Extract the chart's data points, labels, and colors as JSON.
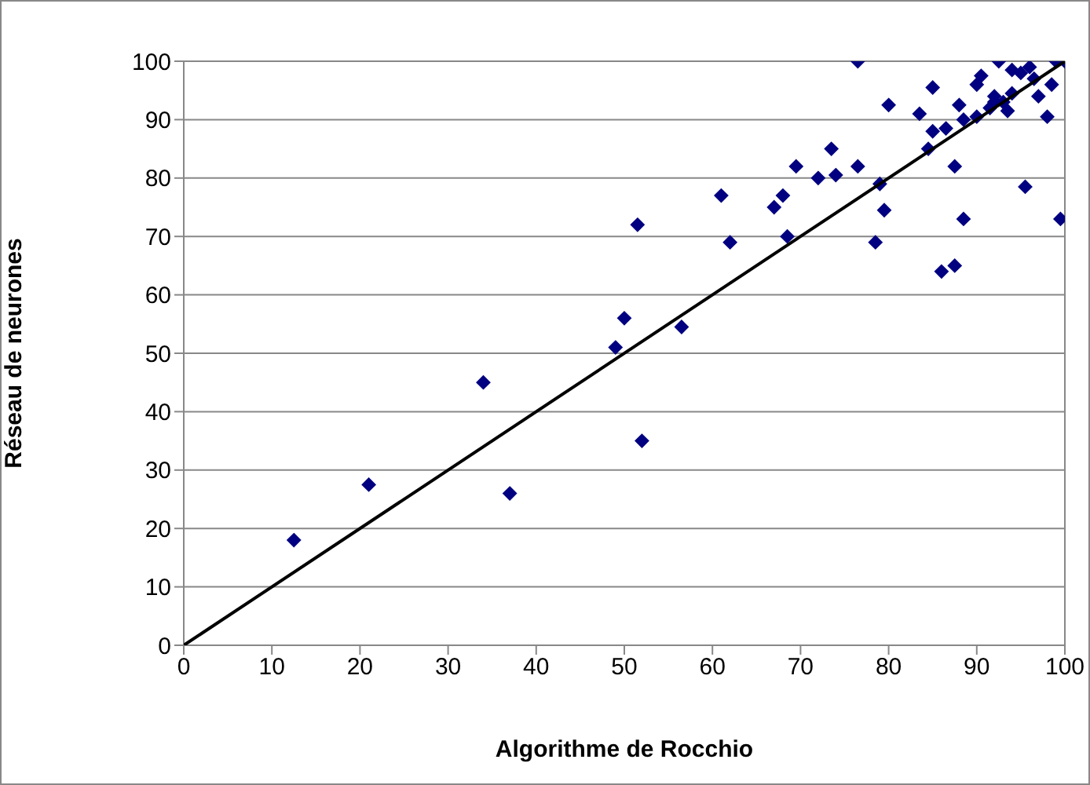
{
  "chart_data": {
    "type": "scatter",
    "xlabel": "Algorithme de Rocchio",
    "ylabel": "Réseau de neurones",
    "xlim": [
      0,
      100
    ],
    "ylim": [
      0,
      100
    ],
    "xticks": [
      0,
      10,
      20,
      30,
      40,
      50,
      60,
      70,
      80,
      90,
      100
    ],
    "yticks": [
      0,
      10,
      20,
      30,
      40,
      50,
      60,
      70,
      80,
      90,
      100
    ],
    "grid": "y",
    "marker": "diamond",
    "series": [
      {
        "color": "#000080",
        "x": [
          12.5,
          21,
          34,
          37,
          49,
          50,
          51.5,
          52,
          56.5,
          61,
          62,
          67,
          68,
          68.5,
          69.5,
          72,
          73.5,
          74,
          76.5,
          76.5,
          78.5,
          79,
          79.5,
          80,
          83.5,
          84.5,
          85,
          85,
          86,
          86.5,
          87.5,
          87.5,
          88,
          88.5,
          88.5,
          90,
          90,
          90.5,
          91.5,
          92,
          92.5,
          93,
          93.5,
          94,
          94,
          95,
          95.5,
          96,
          96.5,
          98,
          98.5,
          99,
          99.5,
          100,
          92,
          97
        ],
        "values": [
          18,
          27.5,
          45,
          26,
          51,
          56,
          72,
          35,
          54.5,
          77,
          69,
          75,
          77,
          70,
          82,
          80,
          85,
          80.5,
          100,
          82,
          69,
          79,
          74.5,
          92.5,
          91,
          85,
          95.5,
          88,
          64,
          88.5,
          65,
          82,
          92.5,
          73,
          90,
          90.5,
          96,
          97.5,
          92,
          94,
          100,
          93,
          91.5,
          98.5,
          94.5,
          98,
          78.5,
          99,
          97,
          90.5,
          96,
          100,
          73,
          100,
          93,
          94
        ]
      },
      {
        "type": "line",
        "color": "#000000",
        "x": [
          0,
          100
        ],
        "values": [
          0,
          100
        ],
        "marker": "none",
        "line_style": "solid"
      }
    ]
  }
}
